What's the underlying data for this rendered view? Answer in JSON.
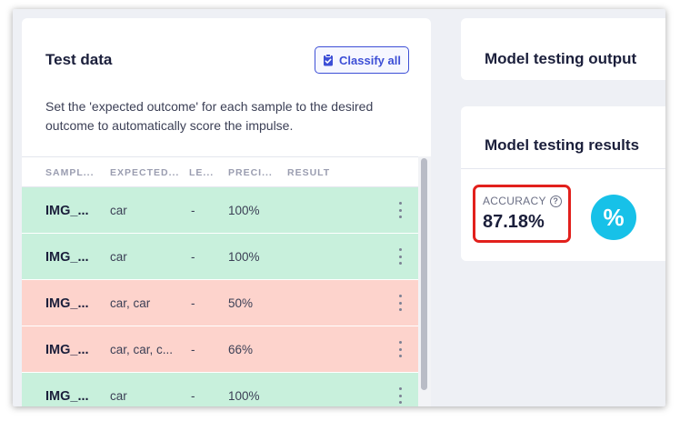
{
  "test_data": {
    "title": "Test data",
    "classify_all_label": "Classify all",
    "description": "Set the 'expected outcome' for each sample to the desired outcome to automatically score the impulse.",
    "columns": [
      "SAMPL...",
      "EXPECTED...",
      "LE...",
      "PRECI...",
      "RESULT"
    ],
    "rows": [
      {
        "sample": "IMG_...",
        "expected": "car",
        "length": "-",
        "precision": "100%",
        "result": "",
        "status": "pass"
      },
      {
        "sample": "IMG_...",
        "expected": "car",
        "length": "-",
        "precision": "100%",
        "result": "",
        "status": "pass"
      },
      {
        "sample": "IMG_...",
        "expected": "car, car",
        "length": "-",
        "precision": "50%",
        "result": "",
        "status": "fail"
      },
      {
        "sample": "IMG_...",
        "expected": "car, car, c...",
        "length": "-",
        "precision": "66%",
        "result": "",
        "status": "fail"
      },
      {
        "sample": "IMG_...",
        "expected": "car",
        "length": "-",
        "precision": "100%",
        "result": "",
        "status": "pass"
      }
    ]
  },
  "model_output": {
    "title": "Model testing output"
  },
  "model_results": {
    "title": "Model testing results",
    "accuracy_label": "ACCURACY",
    "accuracy_value": "87.18%",
    "metric_icon_glyph": "%"
  },
  "icons": {
    "classify": "clipboard-check-icon",
    "help": "question-circle-icon",
    "row_menu": "kebab-menu-icon",
    "metric": "percent-icon"
  },
  "colors": {
    "accent": "#3d4fd6",
    "pass_row": "#c8f0dc",
    "fail_row": "#fdd3cc",
    "highlight": "#e2201c",
    "metric_icon": "#17c1e8"
  }
}
